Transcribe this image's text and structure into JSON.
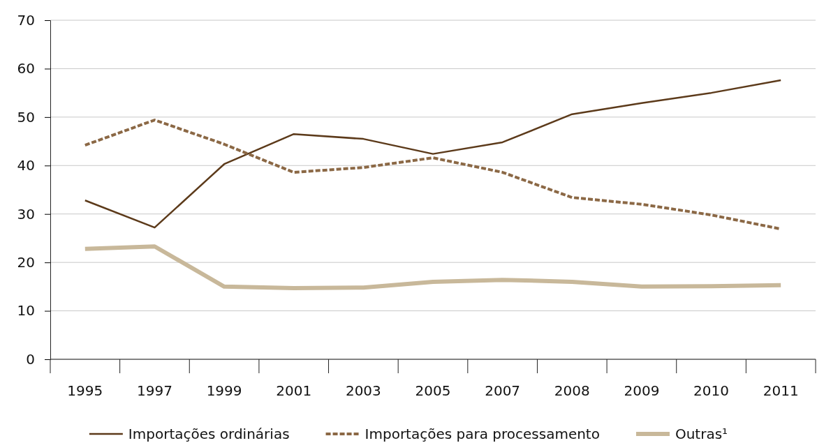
{
  "chart_data": {
    "type": "line",
    "categories": [
      "1995",
      "1997",
      "1999",
      "2001",
      "2003",
      "2005",
      "2007",
      "2008",
      "2009",
      "2010",
      "2011"
    ],
    "ylim": [
      0,
      70
    ],
    "yticks": [
      0,
      10,
      20,
      30,
      40,
      50,
      60,
      70
    ],
    "grid": "y",
    "legend": "bottom",
    "series": [
      {
        "name": "Importações ordinárias",
        "color": "#5c3a1a",
        "line_style": "solid",
        "values": [
          32.8,
          27.2,
          40.3,
          46.5,
          45.5,
          42.4,
          44.8,
          50.6,
          52.9,
          55,
          57.6
        ]
      },
      {
        "name": "Importações para processamento",
        "color": "#8b6845",
        "line_style": "dashed",
        "values": [
          44.2,
          49.4,
          44.4,
          38.6,
          39.6,
          41.6,
          38.6,
          33.4,
          32,
          29.8,
          26.9
        ]
      },
      {
        "name": "Outras¹",
        "color": "#c8b89a",
        "line_style": "solid",
        "values": [
          22.8,
          23.3,
          15,
          14.7,
          14.8,
          16,
          16.4,
          16,
          15,
          15.1,
          15.3
        ]
      }
    ]
  }
}
